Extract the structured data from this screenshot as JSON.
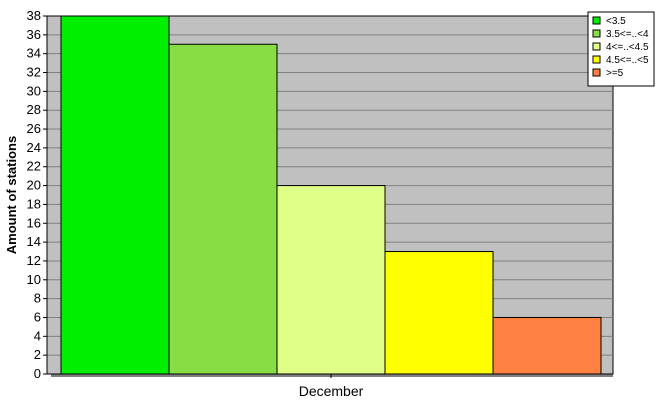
{
  "chart_data": {
    "type": "bar",
    "categories": [
      "December"
    ],
    "series": [
      {
        "name": "<3.5",
        "values": [
          38
        ],
        "color": "#00ee00"
      },
      {
        "name": "3.5<=..<4",
        "values": [
          35
        ],
        "color": "#88dd44"
      },
      {
        "name": "4<=..<4.5",
        "values": [
          20
        ],
        "color": "#e0ff88"
      },
      {
        "name": "4.5<=..<5",
        "values": [
          13
        ],
        "color": "#ffff00"
      },
      {
        "name": ">=5",
        "values": [
          6
        ],
        "color": "#ff8040"
      }
    ],
    "title": "",
    "xlabel": "",
    "ylabel": "Amount of stations",
    "ylim": [
      0,
      38
    ],
    "y_ticks": [
      0,
      2,
      4,
      6,
      8,
      10,
      12,
      14,
      16,
      18,
      20,
      22,
      24,
      26,
      28,
      30,
      32,
      34,
      36,
      38
    ],
    "grid": true,
    "legend_position": "top-right",
    "plot_background": "#c0c0c0"
  }
}
